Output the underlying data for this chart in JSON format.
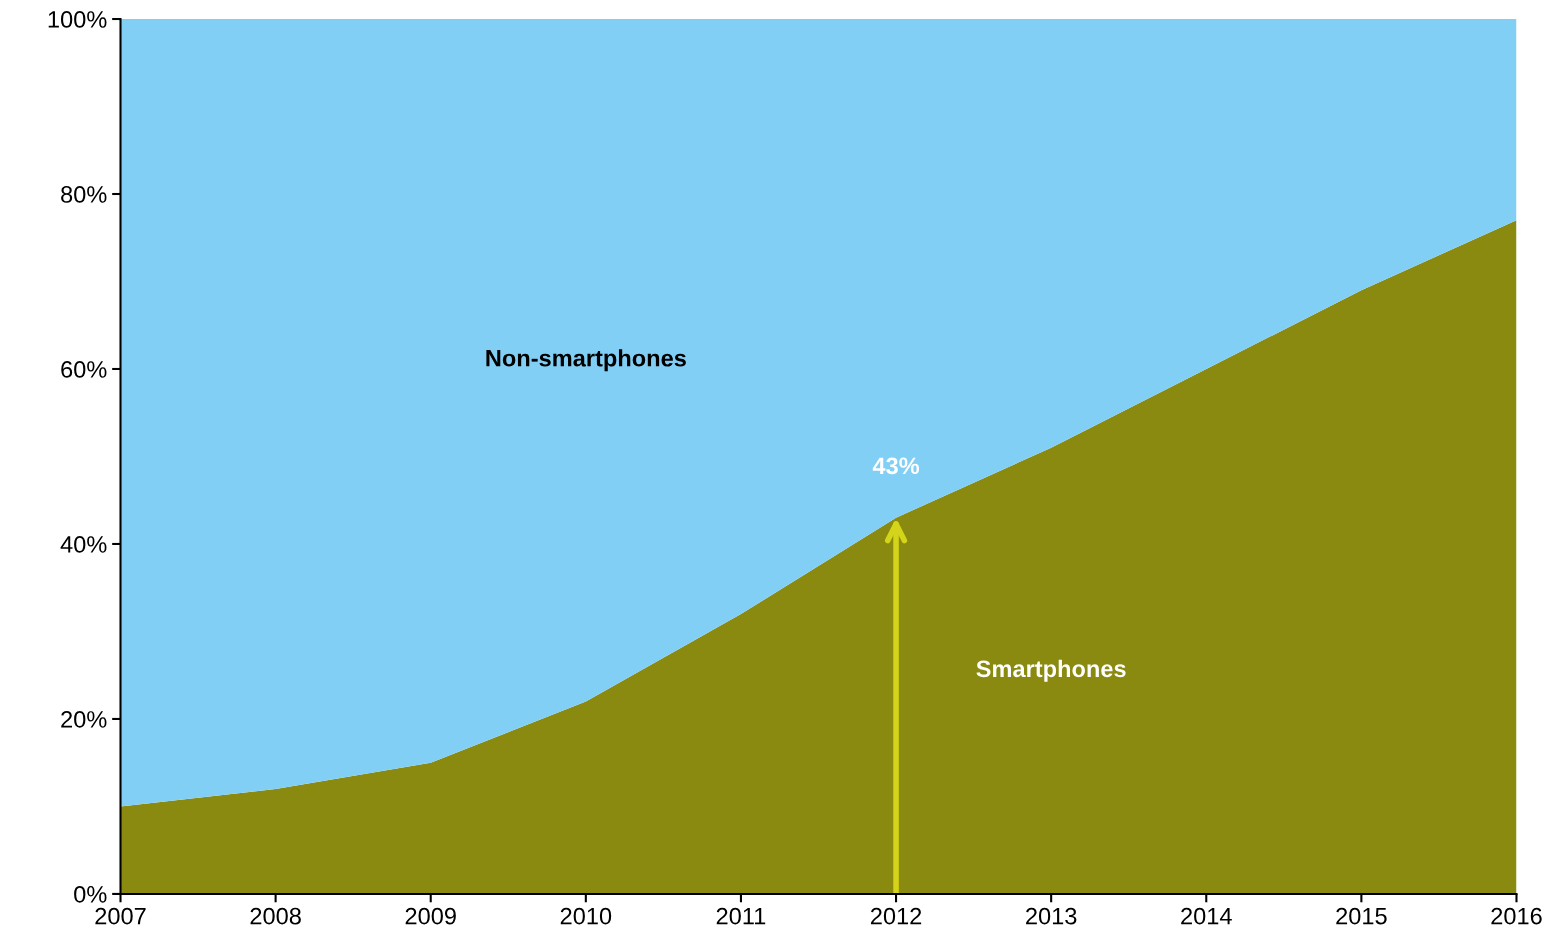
{
  "chart_data": {
    "type": "area",
    "stacked": true,
    "x": [
      2007,
      2008,
      2009,
      2010,
      2011,
      2012,
      2013,
      2014,
      2015,
      2016
    ],
    "series": [
      {
        "name": "Smartphones",
        "color": "#8a8a10",
        "values": [
          10,
          12,
          15,
          22,
          32,
          43,
          51,
          60,
          69,
          77
        ]
      },
      {
        "name": "Non-smartphones",
        "color": "#82cff5",
        "values": [
          90,
          88,
          85,
          78,
          68,
          57,
          49,
          40,
          31,
          23
        ]
      }
    ],
    "xlim": [
      2007,
      2016
    ],
    "xticks": [
      2007,
      2008,
      2009,
      2010,
      2011,
      2012,
      2013,
      2014,
      2015,
      2016
    ],
    "ylim": [
      0,
      100
    ],
    "yticks": [
      {
        "value": 0,
        "label": "0%"
      },
      {
        "value": 20,
        "label": "20%"
      },
      {
        "value": 40,
        "label": "40%"
      },
      {
        "value": 60,
        "label": "60%"
      },
      {
        "value": 80,
        "label": "80%"
      },
      {
        "value": 100,
        "label": "100%"
      }
    ],
    "annotations": [
      {
        "text": "43%",
        "x": 2012,
        "y": 43
      }
    ],
    "grid": false,
    "legend": false
  }
}
